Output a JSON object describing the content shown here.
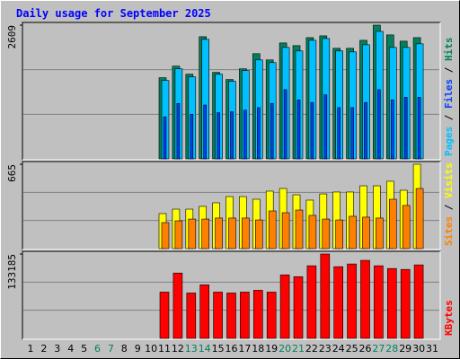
{
  "chart_data": {
    "type": "bar",
    "title": "Daily usage for September 2025",
    "categories": [
      "1",
      "2",
      "3",
      "4",
      "5",
      "6",
      "7",
      "8",
      "9",
      "10",
      "11",
      "12",
      "13",
      "14",
      "15",
      "16",
      "17",
      "18",
      "19",
      "20",
      "21",
      "22",
      "23",
      "24",
      "25",
      "26",
      "27",
      "28",
      "29",
      "30",
      "31"
    ],
    "weekend_color": "#00805c",
    "weekend_indices": [
      5,
      6,
      12,
      13,
      19,
      20,
      26,
      27
    ],
    "panels": [
      {
        "ylim": [
          0,
          2609
        ],
        "yticks": [
          2609
        ],
        "grid": true,
        "series": [
          {
            "name": "Pages",
            "color": "#00c0ff",
            "values": [
              null,
              null,
              null,
              null,
              null,
              null,
              null,
              null,
              null,
              null,
              1530,
              1757,
              1600,
              2331,
              1652,
              1513,
              1722,
              1930,
              1878,
              2174,
              2105,
              2313,
              2348,
              2105,
              2087,
              2226,
              2487,
              2174,
              2174,
              2244,
              null
            ]
          },
          {
            "name": "Files",
            "color": "#0040ff",
            "values": [
              null,
              null,
              null,
              null,
              null,
              null,
              null,
              null,
              null,
              null,
              820,
              1080,
              870,
              1050,
              900,
              920,
              950,
              1000,
              1080,
              1350,
              1150,
              1100,
              1250,
              1000,
              1000,
              1100,
              1350,
              1150,
              1200,
              1200,
              null
            ]
          },
          {
            "name": "Hits",
            "color": "#00805c",
            "values": [
              null,
              null,
              null,
              null,
              null,
              null,
              null,
              null,
              null,
              null,
              1583,
              1809,
              1652,
              2383,
              1687,
              1548,
              1757,
              2052,
              1930,
              2261,
              2209,
              2365,
              2400,
              2157,
              2157,
              2313,
              2609,
              2418,
              2296,
              2365,
              null
            ]
          }
        ]
      },
      {
        "ylim": [
          0,
          665
        ],
        "yticks": [
          665
        ],
        "grid": true,
        "series": [
          {
            "name": "Sites",
            "color": "#ff8000",
            "values": [
              null,
              null,
              null,
              null,
              null,
              null,
              null,
              null,
              null,
              null,
              205,
              219,
              233,
              233,
              241,
              241,
              241,
              226,
              297,
              283,
              304,
              262,
              233,
              226,
              255,
              248,
              241,
              389,
              340,
              474,
              null
            ]
          },
          {
            "name": "Visits",
            "color": "#ffff00",
            "values": [
              null,
              null,
              null,
              null,
              null,
              null,
              null,
              null,
              null,
              null,
              276,
              311,
              311,
              333,
              361,
              410,
              410,
              389,
              453,
              474,
              424,
              382,
              431,
              446,
              446,
              495,
              495,
              531,
              460,
              665,
              null
            ]
          }
        ]
      },
      {
        "ylim": [
          0,
          133185
        ],
        "yticks": [
          133185
        ],
        "grid": true,
        "series": [
          {
            "name": "KBytes",
            "color": "#ff0000",
            "values": [
              null,
              null,
              null,
              null,
              null,
              null,
              null,
              null,
              null,
              null,
              73037,
              103111,
              71605,
              84493,
              73037,
              71605,
              73037,
              75901,
              73037,
              100247,
              97383,
              114568,
              133185,
              113136,
              117432,
              123160,
              114568,
              110272,
              108840,
              116000,
              null
            ]
          }
        ]
      }
    ]
  }
}
